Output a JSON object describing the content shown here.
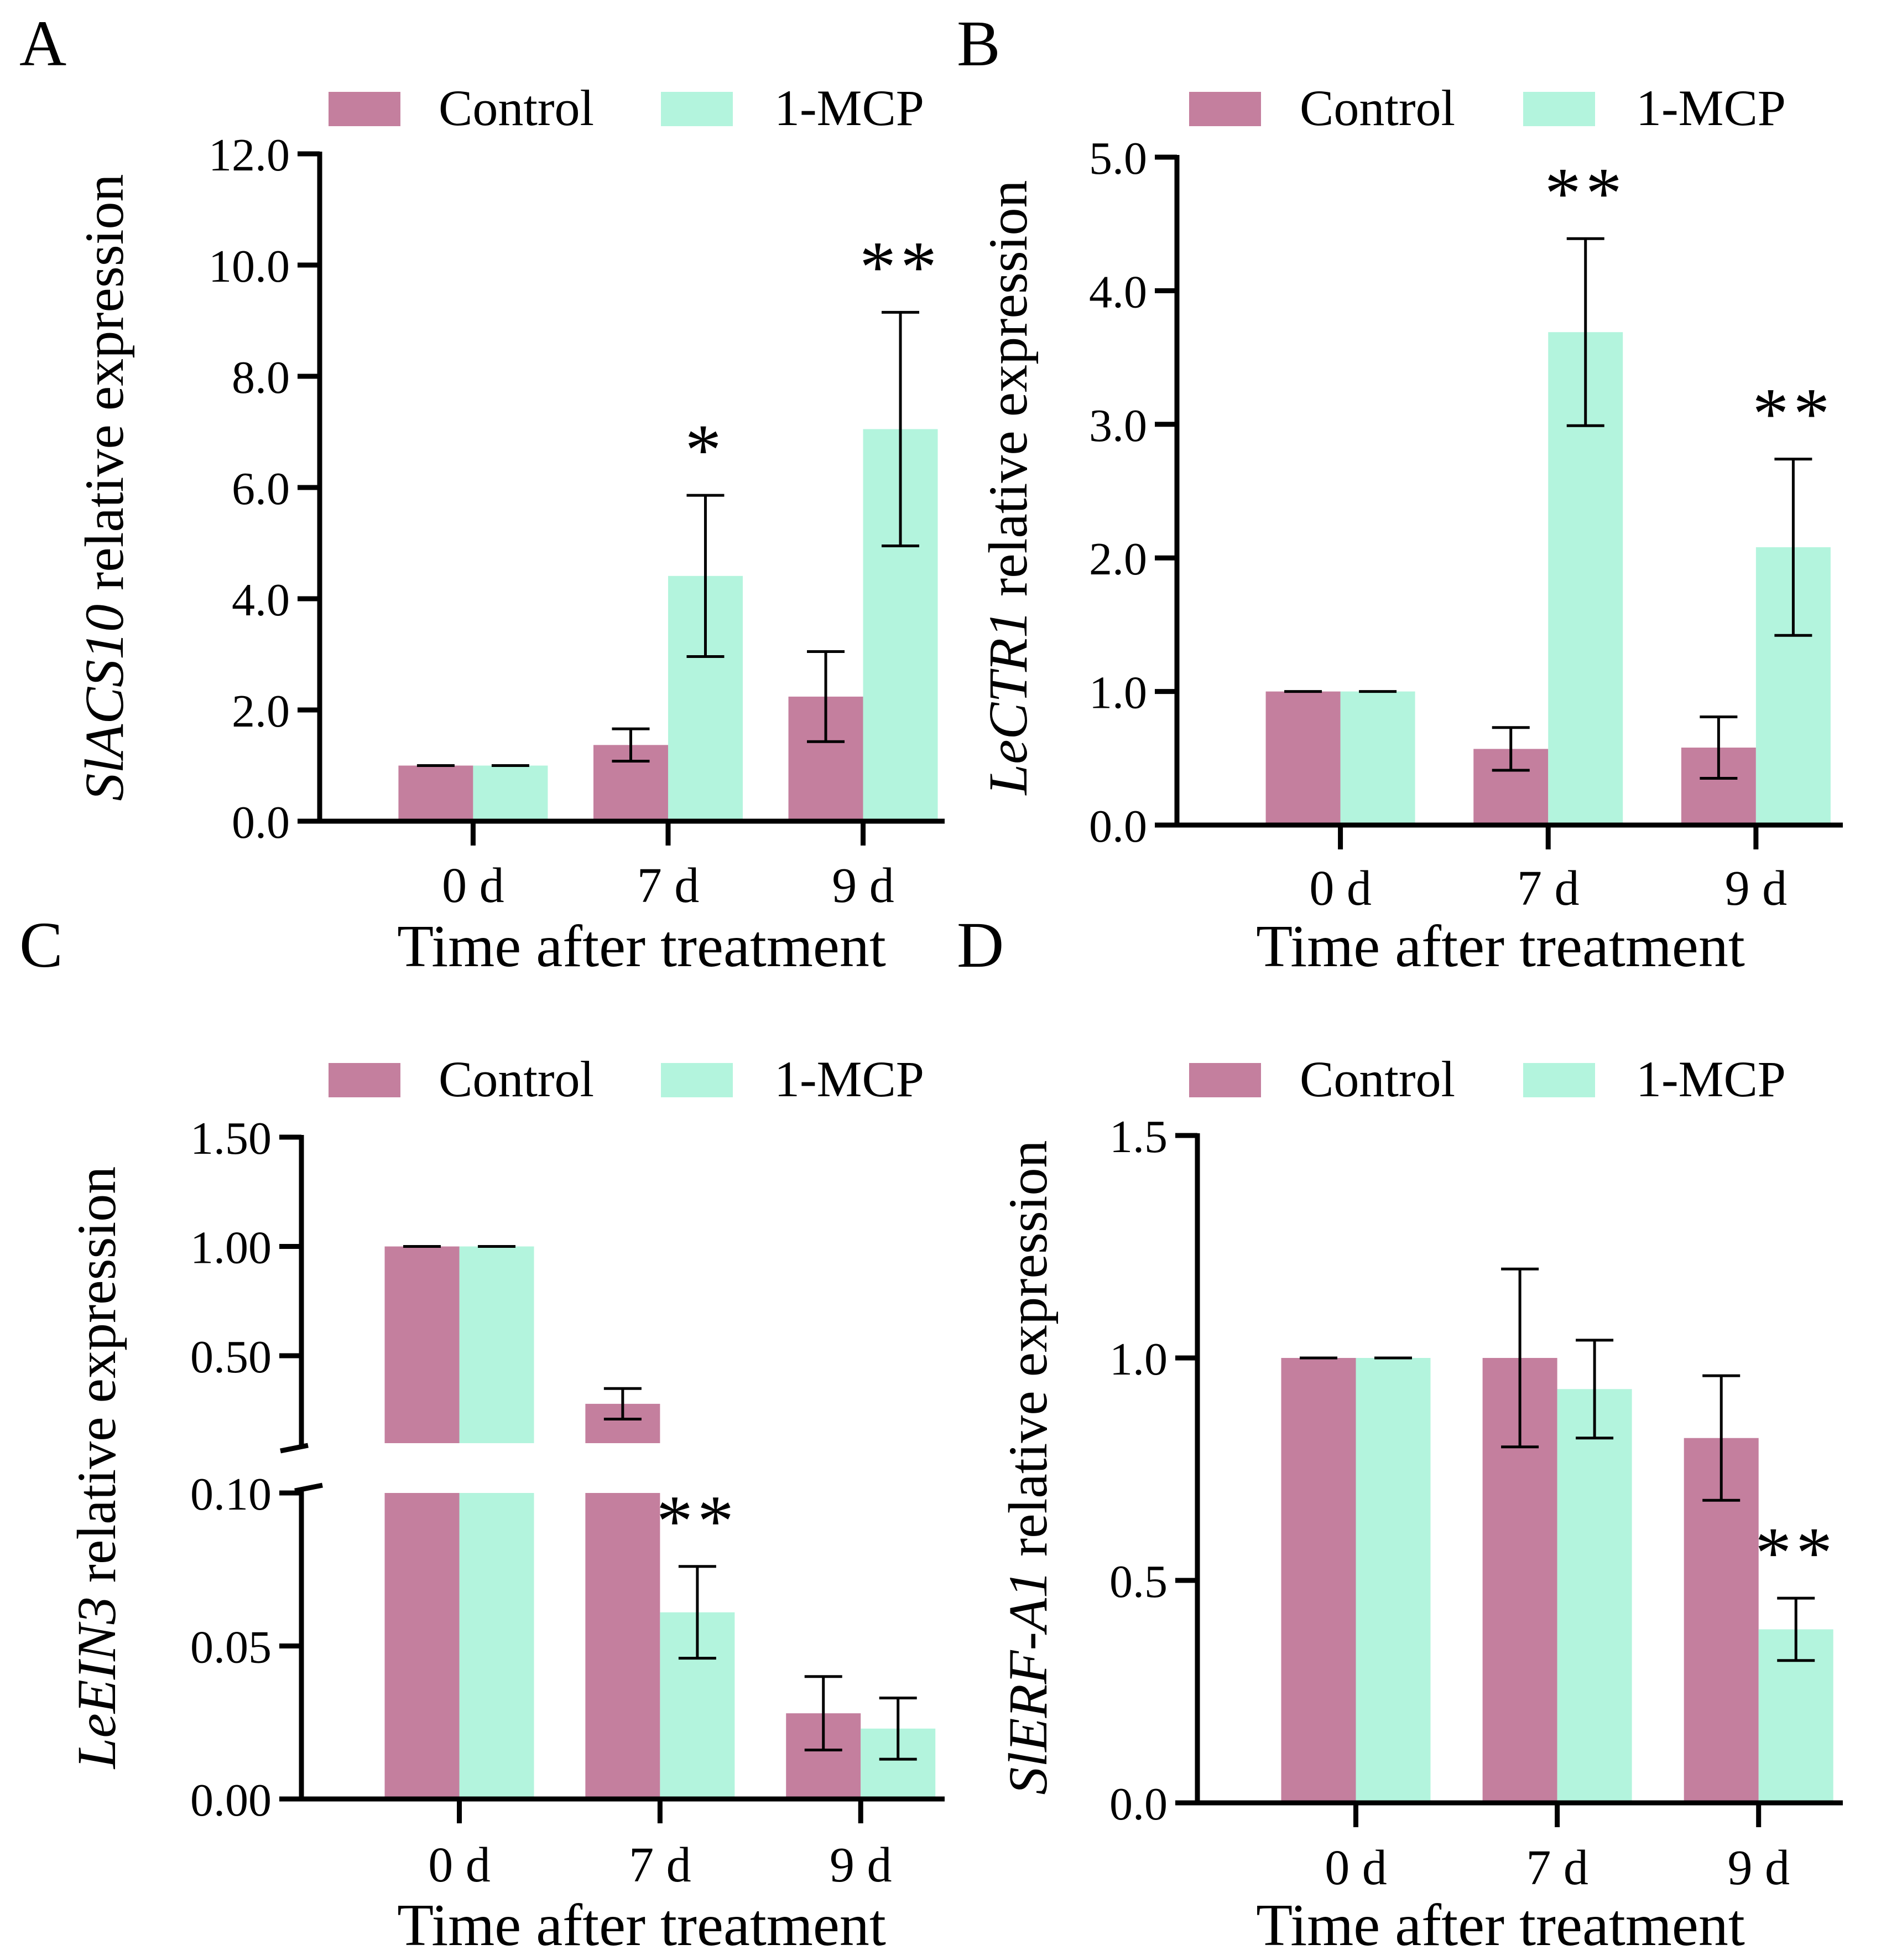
{
  "colors": {
    "control": "#c47f9e",
    "mcp": "#b3f4dd",
    "axis": "#000000"
  },
  "chart_data": [
    {
      "panel": "A",
      "type": "bar",
      "categories": [
        "0 d",
        "7 d",
        "9 d"
      ],
      "series": [
        {
          "name": "Control",
          "values": [
            1.0,
            1.37,
            2.24
          ],
          "errors": [
            0.0,
            0.29,
            0.81
          ]
        },
        {
          "name": "1-MCP",
          "values": [
            1.0,
            4.41,
            7.05
          ],
          "errors": [
            0.0,
            1.45,
            2.1
          ]
        }
      ],
      "ylim": [
        0,
        12
      ],
      "yticks": [
        0,
        2,
        4,
        6,
        8,
        10,
        12
      ],
      "ytick_labels": [
        "0.0",
        "2.0",
        "4.0",
        "6.0",
        "8.0",
        "10.0",
        "12.0"
      ],
      "ylabel_italic": "SlACS10",
      "ylabel_rest": " relative expression",
      "xlabel": "Time after treatment",
      "significance": [
        {
          "category": "7 d",
          "label": "*"
        },
        {
          "category": "9 d",
          "label": "**"
        }
      ]
    },
    {
      "panel": "B",
      "type": "bar",
      "categories": [
        "0 d",
        "7 d",
        "9 d"
      ],
      "series": [
        {
          "name": "Control",
          "values": [
            1.0,
            0.57,
            0.58
          ],
          "errors": [
            0.0,
            0.16,
            0.23
          ]
        },
        {
          "name": "1-MCP",
          "values": [
            1.0,
            3.69,
            2.08
          ],
          "errors": [
            0.0,
            0.7,
            0.66
          ]
        }
      ],
      "ylim": [
        0,
        5
      ],
      "yticks": [
        0,
        1,
        2,
        3,
        4,
        5
      ],
      "ytick_labels": [
        "0.0",
        "1.0",
        "2.0",
        "3.0",
        "4.0",
        "5.0"
      ],
      "ylabel_italic": "LeCTR1",
      "ylabel_rest": " relative expression",
      "xlabel": "Time after treatment",
      "significance": [
        {
          "category": "7 d",
          "label": "**"
        },
        {
          "category": "9 d",
          "label": "**"
        }
      ]
    },
    {
      "panel": "C",
      "type": "bar",
      "axis_break": {
        "lower": [
          0,
          0.1
        ],
        "upper": [
          0.1,
          1.5
        ]
      },
      "categories": [
        "0 d",
        "7 d",
        "9 d"
      ],
      "series": [
        {
          "name": "Control",
          "values": [
            1.0,
            0.28,
            0.028
          ],
          "errors": [
            0.0,
            0.07,
            0.012
          ]
        },
        {
          "name": "1-MCP",
          "values": [
            1.0,
            0.061,
            0.023
          ],
          "errors": [
            0.0,
            0.015,
            0.01
          ]
        }
      ],
      "yticks_lower": [
        0,
        0.05,
        0.1
      ],
      "ytick_labels_lower": [
        "0.00",
        "0.05",
        "0.10"
      ],
      "yticks_upper": [
        0.5,
        1.0,
        1.5
      ],
      "ytick_labels_upper": [
        "0.50",
        "1.00",
        "1.50"
      ],
      "ylabel_italic": "LeEIN3",
      "ylabel_rest": " relative expression",
      "xlabel": "Time after treatment",
      "significance": [
        {
          "category": "7 d",
          "label": "**"
        }
      ]
    },
    {
      "panel": "D",
      "type": "bar",
      "categories": [
        "0 d",
        "7 d",
        "9 d"
      ],
      "series": [
        {
          "name": "Control",
          "values": [
            1.0,
            1.0,
            0.82
          ],
          "errors": [
            0.0,
            0.2,
            0.14
          ]
        },
        {
          "name": "1-MCP",
          "values": [
            1.0,
            0.93,
            0.39
          ],
          "errors": [
            0.0,
            0.11,
            0.07
          ]
        }
      ],
      "ylim": [
        0,
        1.5
      ],
      "yticks": [
        0,
        0.5,
        1.0,
        1.5
      ],
      "ytick_labels": [
        "0.0",
        "0.5",
        "1.0",
        "1.5"
      ],
      "ylabel_italic": "SlERF-A1",
      "ylabel_rest": " relative expression",
      "xlabel": "Time after treatment",
      "significance": [
        {
          "category": "9 d",
          "label": "**"
        }
      ]
    }
  ]
}
